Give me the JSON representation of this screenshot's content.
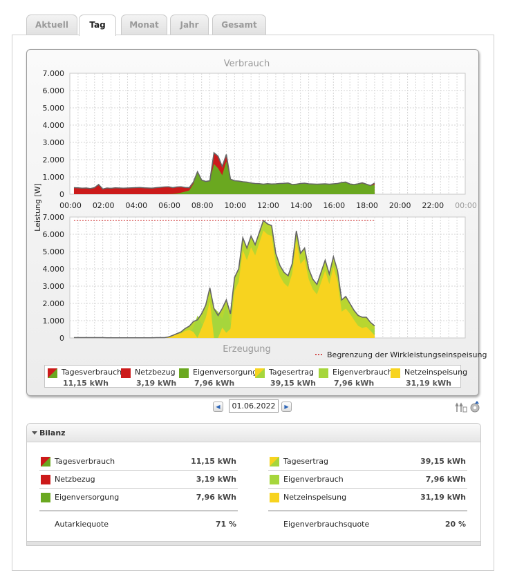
{
  "tabs": [
    {
      "label": "Aktuell",
      "active": false
    },
    {
      "label": "Tag",
      "active": true
    },
    {
      "label": "Monat",
      "active": false
    },
    {
      "label": "Jahr",
      "active": false
    },
    {
      "label": "Gesamt",
      "active": false
    }
  ],
  "chart_data": [
    {
      "type": "area",
      "title": "Verbrauch",
      "ylabel": "Leistung [W]",
      "ylim": [
        0,
        7000
      ],
      "yticks": [
        "0",
        "1.000",
        "2.000",
        "3.000",
        "4.000",
        "5.000",
        "6.000",
        "7.000"
      ],
      "xticks": [
        "00:00",
        "02:00",
        "04:00",
        "06:00",
        "08:00",
        "10:00",
        "12:00",
        "14:00",
        "16:00",
        "18:00",
        "20:00",
        "22:00",
        "00:00"
      ],
      "grid": true,
      "x": [
        "00:15",
        "00:30",
        "00:45",
        "01:00",
        "01:15",
        "01:30",
        "01:45",
        "02:00",
        "02:15",
        "02:30",
        "02:45",
        "03:00",
        "03:15",
        "03:30",
        "03:45",
        "04:00",
        "04:15",
        "04:30",
        "04:45",
        "05:00",
        "05:15",
        "05:30",
        "05:45",
        "06:00",
        "06:15",
        "06:30",
        "06:45",
        "07:00",
        "07:15",
        "07:30",
        "07:45",
        "08:00",
        "08:15",
        "08:30",
        "08:45",
        "09:00",
        "09:15",
        "09:30",
        "09:45",
        "10:00",
        "10:15",
        "10:30",
        "10:45",
        "11:00",
        "11:15",
        "11:30",
        "11:45",
        "12:00",
        "12:15",
        "12:30",
        "12:45",
        "13:00",
        "13:15",
        "13:30",
        "13:45",
        "14:00",
        "14:15",
        "14:30",
        "14:45",
        "15:00",
        "15:15",
        "15:30",
        "15:45",
        "16:00",
        "16:15",
        "16:30",
        "16:45",
        "17:00",
        "17:15",
        "17:30",
        "17:45",
        "18:00",
        "18:15",
        "18:30"
      ],
      "series": [
        {
          "name": "Tagesverbrauch",
          "color": "#cc1a1a",
          "values": [
            380,
            370,
            350,
            360,
            330,
            380,
            560,
            300,
            360,
            340,
            370,
            360,
            350,
            360,
            370,
            380,
            390,
            370,
            360,
            350,
            380,
            400,
            420,
            430,
            380,
            420,
            430,
            390,
            380,
            700,
            1300,
            820,
            740,
            780,
            2400,
            2200,
            1600,
            2300,
            870,
            780,
            760,
            720,
            700,
            650,
            620,
            610,
            580,
            610,
            590,
            600,
            620,
            630,
            650,
            560,
            580,
            620,
            640,
            600,
            590,
            580,
            590,
            600,
            580,
            600,
            620,
            680,
            700,
            590,
            560,
            600,
            660,
            580,
            500,
            650
          ]
        },
        {
          "name": "Eigenversorgung",
          "color": "#6aa820",
          "values": [
            0,
            0,
            0,
            0,
            0,
            0,
            0,
            0,
            0,
            0,
            0,
            0,
            0,
            0,
            0,
            0,
            0,
            0,
            0,
            0,
            0,
            0,
            0,
            5,
            15,
            40,
            90,
            150,
            220,
            600,
            1300,
            820,
            740,
            780,
            1750,
            1500,
            1100,
            1900,
            870,
            780,
            760,
            720,
            700,
            650,
            620,
            610,
            580,
            610,
            590,
            600,
            620,
            630,
            650,
            560,
            580,
            620,
            640,
            600,
            590,
            580,
            590,
            600,
            580,
            600,
            620,
            680,
            700,
            590,
            560,
            600,
            620,
            560,
            480,
            550
          ]
        }
      ]
    },
    {
      "type": "area",
      "title": "Erzeugung",
      "ylabel": "Leistung [W]",
      "ylim": [
        0,
        7000
      ],
      "yticks": [
        "0",
        "1.000",
        "2.000",
        "3.000",
        "4.000",
        "5.000",
        "6.000",
        "7.000"
      ],
      "grid": true,
      "annotation": "Begrenzung der Wirkleistungseinspeisung",
      "limit_line": 6800,
      "x": [
        "00:15",
        "00:30",
        "00:45",
        "01:00",
        "01:15",
        "01:30",
        "01:45",
        "02:00",
        "02:15",
        "02:30",
        "02:45",
        "03:00",
        "03:15",
        "03:30",
        "03:45",
        "04:00",
        "04:15",
        "04:30",
        "04:45",
        "05:00",
        "05:15",
        "05:30",
        "05:45",
        "06:00",
        "06:15",
        "06:30",
        "06:45",
        "07:00",
        "07:15",
        "07:30",
        "07:45",
        "08:00",
        "08:15",
        "08:30",
        "08:45",
        "09:00",
        "09:15",
        "09:30",
        "09:45",
        "10:00",
        "10:15",
        "10:30",
        "10:45",
        "11:00",
        "11:15",
        "11:30",
        "11:45",
        "12:00",
        "12:15",
        "12:30",
        "12:45",
        "13:00",
        "13:15",
        "13:30",
        "13:45",
        "14:00",
        "14:15",
        "14:30",
        "14:45",
        "15:00",
        "15:15",
        "15:30",
        "15:45",
        "16:00",
        "16:15",
        "16:30",
        "16:45",
        "17:00",
        "17:15",
        "17:30",
        "17:45",
        "18:00",
        "18:15",
        "18:30"
      ],
      "series": [
        {
          "name": "Tagesertrag",
          "color": "#b8d630",
          "values": [
            20,
            20,
            20,
            20,
            20,
            20,
            20,
            20,
            10,
            10,
            10,
            10,
            10,
            10,
            10,
            10,
            10,
            10,
            10,
            10,
            20,
            20,
            20,
            60,
            150,
            250,
            350,
            550,
            680,
            950,
            1050,
            1400,
            1900,
            2900,
            1700,
            1300,
            1700,
            2200,
            1400,
            3500,
            4000,
            5800,
            5200,
            5900,
            5400,
            6100,
            6800,
            6600,
            6500,
            4900,
            4200,
            3800,
            3600,
            4300,
            6200,
            4900,
            5200,
            4000,
            3400,
            3100,
            3800,
            4500,
            3700,
            4700,
            3900,
            2200,
            2400,
            2000,
            1600,
            1300,
            1200,
            1200,
            900,
            700
          ]
        },
        {
          "name": "Eigenverbrauch",
          "color": "#a6d63c",
          "values": [
            0,
            0,
            0,
            0,
            0,
            0,
            0,
            0,
            0,
            0,
            0,
            0,
            0,
            0,
            0,
            0,
            0,
            0,
            0,
            0,
            0,
            0,
            0,
            5,
            15,
            40,
            90,
            150,
            220,
            600,
            1300,
            820,
            740,
            780,
            1750,
            1500,
            1100,
            1900,
            870,
            780,
            760,
            720,
            700,
            650,
            620,
            610,
            580,
            610,
            590,
            600,
            620,
            630,
            650,
            560,
            580,
            620,
            640,
            600,
            590,
            580,
            590,
            600,
            580,
            600,
            620,
            680,
            700,
            590,
            560,
            600,
            620,
            560,
            480,
            550
          ]
        },
        {
          "name": "Netzeinspeisung",
          "color": "#f7d31f",
          "values": [
            20,
            20,
            20,
            20,
            20,
            20,
            20,
            20,
            10,
            10,
            10,
            10,
            10,
            10,
            10,
            10,
            10,
            10,
            10,
            10,
            20,
            20,
            20,
            55,
            135,
            210,
            260,
            400,
            460,
            350,
            0,
            580,
            1160,
            2120,
            0,
            0,
            600,
            300,
            530,
            2720,
            3240,
            5080,
            4500,
            5250,
            4780,
            5490,
            6220,
            5990,
            5910,
            4300,
            3580,
            3170,
            2950,
            3740,
            5620,
            4280,
            4560,
            3400,
            2810,
            2520,
            3210,
            3900,
            3120,
            4100,
            3280,
            1520,
            1700,
            1410,
            1040,
            700,
            580,
            640,
            420,
            150
          ]
        }
      ]
    }
  ],
  "legend": [
    {
      "name": "Tagesverbrauch",
      "value": "11,15 kWh",
      "swatch": "split-red-green"
    },
    {
      "name": "Netzbezug",
      "value": "3,19 kWh",
      "swatch": "#cc1a1a"
    },
    {
      "name": "Eigenversorgung",
      "value": "7,96 kWh",
      "swatch": "#6aa820"
    },
    {
      "name": "Tagesertrag",
      "value": "39,15 kWh",
      "swatch": "split-yellow-green"
    },
    {
      "name": "Eigenverbrauch",
      "value": "7,96 kWh",
      "swatch": "#a6d63c"
    },
    {
      "name": "Netzeinspeisung",
      "value": "31,19 kWh",
      "swatch": "#f7d31f"
    }
  ],
  "date": {
    "value": "01.06.2022",
    "prev_icon": "arrow-left-icon",
    "next_icon": "arrow-right-icon"
  },
  "bilanz": {
    "title": "Bilanz",
    "left": [
      {
        "name": "Tagesverbrauch",
        "value": "11,15 kWh"
      },
      {
        "name": "Netzbezug",
        "value": "3,19 kWh"
      },
      {
        "name": "Eigenversorgung",
        "value": "7,96 kWh"
      }
    ],
    "left_summary": {
      "name": "Autarkiequote",
      "value": "71 %"
    },
    "right": [
      {
        "name": "Tagesertrag",
        "value": "39,15 kWh"
      },
      {
        "name": "Eigenverbrauch",
        "value": "7,96 kWh"
      },
      {
        "name": "Netzeinspeisung",
        "value": "31,19 kWh"
      }
    ],
    "right_summary": {
      "name": "Eigenverbrauchsquote",
      "value": "20 %"
    }
  },
  "colors": {
    "netzbezug": "#cc1a1a",
    "eigenversorgung": "#6aa820",
    "eigenverbrauch": "#a6d63c",
    "netzeinspeisung": "#f7d31f",
    "limit_line": "#cc1a1a",
    "outline": "#666666"
  }
}
